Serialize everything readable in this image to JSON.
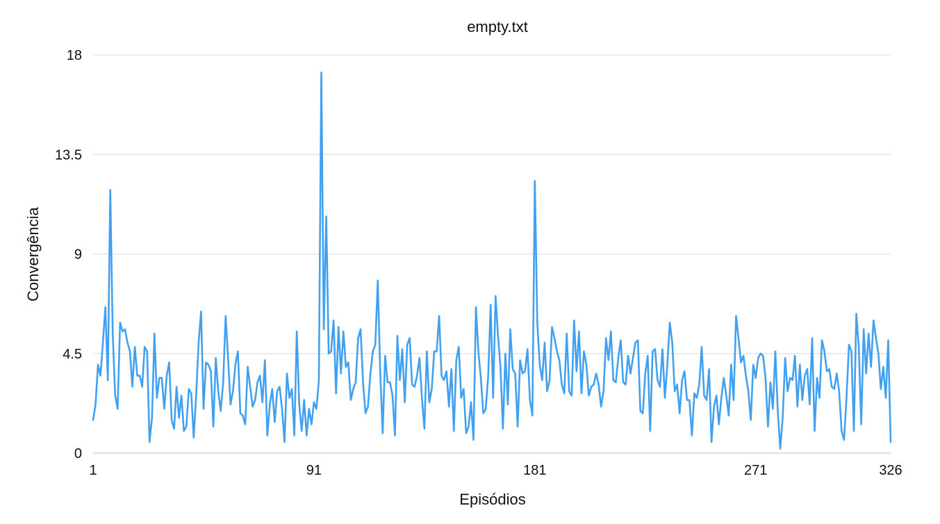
{
  "chart_data": {
    "type": "line",
    "title": "empty.txt",
    "xlabel": "Episódios",
    "ylabel": "Convergência",
    "x_tick_labels": [
      "1",
      "91",
      "181",
      "271",
      "326"
    ],
    "x_tick_values": [
      1,
      91,
      181,
      271,
      326
    ],
    "y_tick_labels": [
      "0",
      "4.5",
      "9",
      "13.5",
      "18"
    ],
    "y_tick_values": [
      0,
      4.5,
      9,
      13.5,
      18
    ],
    "xlim": [
      1,
      326
    ],
    "ylim": [
      0,
      18
    ],
    "grid": "horizontal",
    "legend": "none",
    "series": [
      {
        "color": "#42a0f0",
        "x_start": 1,
        "x_step": 1,
        "values": [
          1.5,
          2.2,
          4.0,
          3.5,
          5.0,
          6.6,
          3.3,
          11.9,
          5.4,
          2.6,
          2.0,
          5.9,
          5.5,
          5.6,
          5.0,
          4.6,
          3.0,
          4.8,
          3.5,
          3.5,
          3.0,
          4.8,
          4.6,
          0.5,
          1.6,
          5.4,
          2.5,
          3.4,
          3.4,
          2.0,
          3.5,
          4.1,
          1.5,
          1.1,
          3.0,
          1.6,
          2.6,
          1.0,
          1.2,
          2.9,
          2.7,
          0.7,
          2.6,
          5.0,
          6.4,
          2.0,
          4.1,
          4.0,
          3.7,
          1.2,
          4.3,
          2.8,
          1.9,
          3.2,
          6.2,
          4.3,
          2.2,
          2.8,
          4.0,
          4.6,
          1.8,
          1.7,
          1.3,
          3.9,
          3.0,
          2.1,
          2.4,
          3.2,
          3.5,
          2.3,
          4.2,
          0.8,
          2.2,
          2.9,
          1.4,
          2.8,
          3.0,
          2.0,
          0.5,
          3.6,
          2.5,
          2.9,
          0.8,
          5.5,
          2.2,
          1.0,
          2.4,
          0.8,
          2.0,
          1.3,
          2.3,
          2.0,
          3.3,
          17.2,
          5.6,
          10.7,
          4.5,
          4.6,
          6.0,
          2.7,
          5.7,
          3.6,
          5.5,
          3.9,
          4.1,
          2.4,
          2.9,
          3.2,
          5.2,
          5.6,
          3.2,
          1.8,
          2.1,
          3.6,
          4.6,
          4.9,
          7.8,
          3.7,
          0.9,
          4.4,
          3.2,
          3.2,
          2.6,
          0.8,
          5.3,
          3.3,
          4.7,
          2.3,
          4.9,
          5.2,
          3.1,
          3.0,
          3.5,
          4.3,
          2.5,
          1.1,
          4.6,
          2.3,
          2.9,
          4.6,
          4.6,
          6.2,
          3.5,
          3.3,
          3.7,
          2.1,
          3.8,
          1.0,
          4.2,
          4.8,
          2.5,
          2.9,
          0.9,
          1.2,
          2.3,
          0.6,
          6.6,
          4.6,
          3.4,
          1.8,
          2.0,
          3.5,
          6.7,
          2.5,
          7.1,
          5.3,
          3.9,
          1.1,
          4.5,
          2.2,
          5.6,
          3.8,
          3.6,
          1.2,
          4.2,
          3.6,
          3.7,
          4.7,
          2.4,
          1.7,
          12.3,
          5.9,
          4.0,
          3.3,
          5.0,
          2.8,
          3.3,
          5.7,
          5.2,
          4.6,
          4.2,
          3.1,
          2.7,
          5.4,
          2.8,
          2.6,
          6.0,
          3.7,
          5.5,
          2.7,
          4.6,
          4.0,
          2.6,
          3.0,
          3.1,
          3.6,
          3.1,
          2.1,
          2.8,
          5.2,
          4.2,
          5.5,
          3.3,
          3.2,
          4.3,
          5.1,
          3.2,
          3.1,
          4.4,
          3.6,
          4.3,
          5.0,
          5.1,
          1.9,
          1.8,
          3.6,
          4.4,
          1.0,
          4.6,
          4.7,
          3.3,
          3.0,
          4.7,
          2.5,
          4.0,
          5.9,
          5.0,
          2.8,
          3.1,
          1.8,
          3.3,
          3.7,
          2.4,
          2.4,
          0.8,
          2.7,
          2.5,
          3.1,
          4.8,
          2.6,
          2.4,
          3.8,
          0.5,
          2.1,
          2.6,
          1.3,
          2.5,
          3.4,
          2.6,
          1.7,
          4.0,
          2.4,
          6.2,
          5.2,
          4.1,
          4.4,
          3.5,
          2.8,
          1.5,
          4.0,
          3.4,
          4.3,
          4.5,
          4.4,
          3.4,
          1.2,
          3.2,
          2.0,
          4.6,
          1.9,
          0.2,
          1.6,
          4.3,
          2.8,
          3.4,
          3.3,
          4.4,
          2.1,
          4.0,
          2.4,
          3.5,
          3.8,
          2.2,
          5.2,
          1.0,
          3.4,
          2.5,
          5.1,
          4.6,
          3.7,
          3.8,
          3.0,
          2.9,
          3.6,
          2.8,
          1.0,
          0.6,
          2.5,
          4.9,
          4.6,
          1.0,
          6.3,
          4.8,
          1.3,
          5.6,
          3.6,
          5.4,
          3.9,
          6.0,
          5.2,
          4.5,
          2.9,
          3.9,
          2.5,
          5.1,
          0.5
        ]
      }
    ]
  }
}
